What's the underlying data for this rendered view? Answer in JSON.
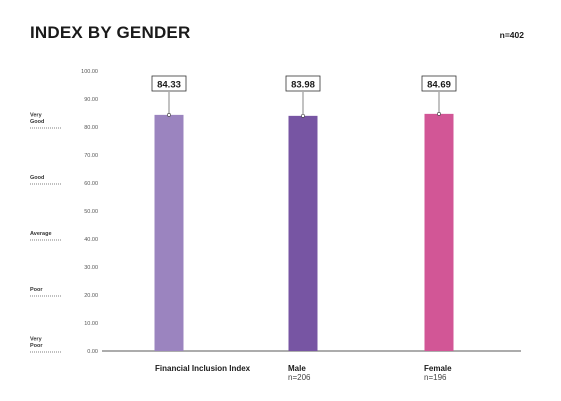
{
  "title": "INDEX BY GENDER",
  "n_total": "n=402",
  "chart_data": {
    "type": "bar",
    "title": "INDEX BY GENDER",
    "categories": [
      "Financial Inclusion Index",
      "Male",
      "Female"
    ],
    "category_subtitles": [
      "",
      "n=206",
      "n=196"
    ],
    "values": [
      84.33,
      83.98,
      84.69
    ],
    "value_labels": [
      "84.33",
      "83.98",
      "84.69"
    ],
    "colors": [
      "#9b84bf",
      "#7755a3",
      "#d25696"
    ],
    "ylim": [
      0,
      100
    ],
    "yticks": [
      "0.00",
      "10.00",
      "20.00",
      "30.00",
      "40.00",
      "50.00",
      "60.00",
      "70.00",
      "80.00",
      "90.00",
      "100.00"
    ],
    "bands": [
      {
        "label": "Very Good",
        "lines": [
          "Very",
          "Good"
        ],
        "y": 80
      },
      {
        "label": "Good",
        "lines": [
          "Good"
        ],
        "y": 60
      },
      {
        "label": "Average",
        "lines": [
          "Average"
        ],
        "y": 40
      },
      {
        "label": "Poor",
        "lines": [
          "Poor"
        ],
        "y": 20
      },
      {
        "label": "Very Poor",
        "lines": [
          "Very",
          "Poor"
        ],
        "y": 0
      }
    ],
    "grid": false,
    "legend": "none"
  }
}
